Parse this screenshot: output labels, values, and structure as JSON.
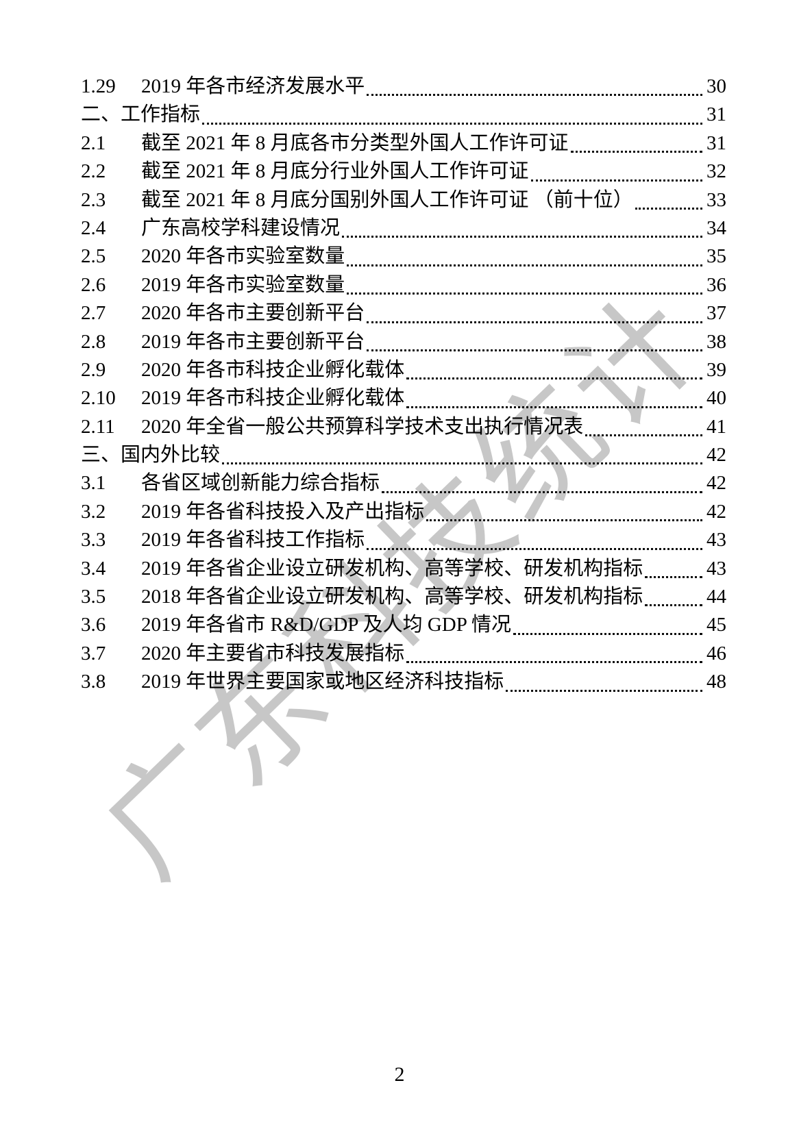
{
  "watermark": {
    "text": "广东科技统计",
    "color": "#c7c7c7"
  },
  "colors": {
    "background": "#ffffff",
    "text": "#000000",
    "watermark": "#c7c7c7"
  },
  "footer": {
    "page_number": "2"
  },
  "toc": {
    "entries": [
      {
        "num": "1.29",
        "title": "2019 年各市经济发展水平",
        "page": "30",
        "section": false
      },
      {
        "num": "二、",
        "title": "工作指标",
        "page": "31",
        "section": true
      },
      {
        "num": "2.1",
        "title": "截至 2021 年 8 月底各市分类型外国人工作许可证",
        "page": "31",
        "section": false
      },
      {
        "num": "2.2",
        "title": "截至 2021 年 8 月底分行业外国人工作许可证",
        "page": "32",
        "section": false
      },
      {
        "num": "2.3",
        "title": "截至 2021 年 8 月底分国别外国人工作许可证 （前十位）",
        "page": "33",
        "section": false
      },
      {
        "num": "2.4",
        "title": "广东高校学科建设情况",
        "page": "34",
        "section": false
      },
      {
        "num": "2.5",
        "title": "2020 年各市实验室数量",
        "page": "35",
        "section": false
      },
      {
        "num": "2.6",
        "title": "2019 年各市实验室数量",
        "page": "36",
        "section": false
      },
      {
        "num": "2.7",
        "title": "2020 年各市主要创新平台",
        "page": "37",
        "section": false
      },
      {
        "num": "2.8",
        "title": "2019 年各市主要创新平台",
        "page": "38",
        "section": false
      },
      {
        "num": "2.9",
        "title": "2020 年各市科技企业孵化载体",
        "page": "39",
        "section": false
      },
      {
        "num": "2.10",
        "title": "2019 年各市科技企业孵化载体",
        "page": "40",
        "section": false
      },
      {
        "num": "2.11",
        "title": "2020 年全省一般公共预算科学技术支出执行情况表",
        "page": "41",
        "section": false
      },
      {
        "num": "三、",
        "title": "国内外比较",
        "page": "42",
        "section": true
      },
      {
        "num": "3.1",
        "title": "各省区域创新能力综合指标",
        "page": "42",
        "section": false
      },
      {
        "num": "3.2",
        "title": "2019 年各省科技投入及产出指标",
        "page": "42",
        "section": false
      },
      {
        "num": "3.3",
        "title": "2019 年各省科技工作指标",
        "page": "43",
        "section": false
      },
      {
        "num": "3.4",
        "title": "2019 年各省企业设立研发机构、高等学校、研发机构指标",
        "page": "43",
        "section": false
      },
      {
        "num": "3.5",
        "title": "2018 年各省企业设立研发机构、高等学校、研发机构指标",
        "page": "44",
        "section": false
      },
      {
        "num": "3.6",
        "title": "2019 年各省市 R&D/GDP 及人均 GDP 情况",
        "page": "45",
        "section": false
      },
      {
        "num": "3.7",
        "title": "2020 年主要省市科技发展指标",
        "page": "46",
        "section": false
      },
      {
        "num": "3.8",
        "title": "2019 年世界主要国家或地区经济科技指标",
        "page": "48",
        "section": false
      }
    ]
  }
}
